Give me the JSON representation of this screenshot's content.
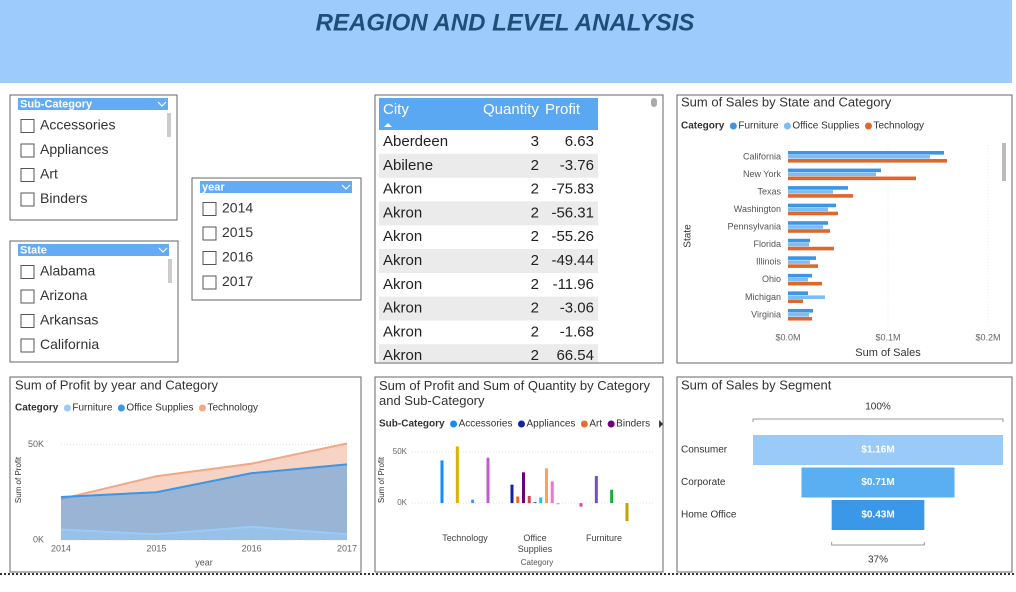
{
  "header": {
    "title": "REAGION AND LEVEL ANALYSIS"
  },
  "slicers": [
    {
      "title": "Sub-Category",
      "items": [
        "Accessories",
        "Appliances",
        "Art",
        "Binders"
      ]
    },
    {
      "title": "State",
      "items": [
        "Alabama",
        "Arizona",
        "Arkansas",
        "California"
      ]
    },
    {
      "title": "year",
      "items": [
        "2014",
        "2015",
        "2016",
        "2017"
      ]
    }
  ],
  "table": {
    "columns": [
      "City",
      "Quantity",
      "Profit"
    ],
    "rows": [
      [
        "Aberdeen",
        3,
        6.63
      ],
      [
        "Abilene",
        2,
        -3.76
      ],
      [
        "Akron",
        2,
        -75.83
      ],
      [
        "Akron",
        2,
        -56.31
      ],
      [
        "Akron",
        2,
        -55.26
      ],
      [
        "Akron",
        2,
        -49.44
      ],
      [
        "Akron",
        2,
        -11.96
      ],
      [
        "Akron",
        2,
        -3.06
      ],
      [
        "Akron",
        2,
        -1.68
      ],
      [
        "Akron",
        2,
        66.54
      ]
    ]
  },
  "chart_data": [
    {
      "type": "hbar",
      "title": "Sum of Sales by State and Category",
      "legend_title": "Category",
      "categories": [
        "California",
        "New York",
        "Texas",
        "Washington",
        "Pennsylvania",
        "Florida",
        "Illinois",
        "Ohio",
        "Michigan",
        "Virginia"
      ],
      "series": [
        {
          "name": "Furniture",
          "color": "#3C96E6",
          "values": [
            156000,
            93000,
            60000,
            48000,
            40000,
            22000,
            28000,
            24000,
            20000,
            25000
          ]
        },
        {
          "name": "Office Supplies",
          "color": "#7CBDF6",
          "values": [
            142000,
            88000,
            45000,
            40000,
            35000,
            21000,
            22000,
            20000,
            37000,
            21000
          ]
        },
        {
          "name": "Technology",
          "color": "#E0662A",
          "values": [
            159000,
            128000,
            65000,
            50000,
            42000,
            46000,
            30000,
            34000,
            15000,
            24000
          ]
        }
      ],
      "xlim": [
        0,
        210000
      ],
      "xticks": [
        {
          "value": 0,
          "label": "$0.0M"
        },
        {
          "value": 100000,
          "label": "$0.1M"
        },
        {
          "value": 200000,
          "label": "$0.2M"
        }
      ],
      "x_label": "Sum of Sales",
      "y_label": "State"
    },
    {
      "type": "area",
      "title": "Sum of Profit by year and Category",
      "legend_title": "Category",
      "x": [
        2014,
        2015,
        2016,
        2017
      ],
      "xlim": [
        2014,
        2017
      ],
      "xticks": [
        2014,
        2015,
        2016,
        2017
      ],
      "series": [
        {
          "name": "Furniture",
          "color": "#9ACBF8",
          "values": [
            5500,
            3000,
            6900,
            3000
          ]
        },
        {
          "name": "Office Supplies",
          "color": "#3C96E6",
          "values": [
            22600,
            25100,
            35100,
            39700
          ]
        },
        {
          "name": "Technology",
          "color": "#F0A887",
          "values": [
            21500,
            33500,
            40100,
            50700
          ]
        }
      ],
      "ylim": [
        0,
        52000
      ],
      "yticks": [
        {
          "value": 0,
          "label": "0K"
        },
        {
          "value": 50000,
          "label": "50K"
        }
      ],
      "x_label": "year",
      "y_label": "Sum of Profit",
      "grid": true
    },
    {
      "type": "groupbar",
      "title": "Sum of Profit and Sum of Quantity by Category and Sub-Category",
      "legend_title": "Sub-Category",
      "categories": [
        "Technology",
        "Office Supplies",
        "Furniture"
      ],
      "series": [
        {
          "name": "Accessories",
          "color": "#118DFF",
          "values": [
            41900,
            null,
            null
          ]
        },
        {
          "name": "Appliances",
          "color": "#12239E",
          "values": [
            null,
            18100,
            null
          ]
        },
        {
          "name": "Art",
          "color": "#E66C37",
          "values": [
            null,
            6500,
            null
          ]
        },
        {
          "name": "Binders",
          "color": "#6B007B",
          "values": [
            null,
            30200,
            null
          ]
        },
        {
          "color": "#E044A7",
          "values": [
            null,
            null,
            -3500
          ]
        },
        {
          "color": "#744EC2",
          "values": [
            null,
            null,
            26600
          ]
        },
        {
          "color": "#D9B300",
          "values": [
            55600,
            null,
            null
          ]
        },
        {
          "color": "#D64550",
          "values": [
            null,
            7000,
            null
          ]
        },
        {
          "color": "#197278",
          "values": [
            null,
            1000,
            null
          ]
        },
        {
          "color": "#1AAB40",
          "values": [
            null,
            null,
            13100
          ]
        },
        {
          "color": "#15C6F4",
          "values": [
            null,
            5500,
            null
          ]
        },
        {
          "color": "#4092FF",
          "values": [
            3400,
            null,
            null
          ]
        },
        {
          "color": "#FFA058",
          "values": [
            null,
            34100,
            null
          ]
        },
        {
          "color": "#BE5DC9",
          "values": [
            44500,
            null,
            null
          ]
        },
        {
          "color": "#F472D0",
          "values": [
            null,
            21300,
            null
          ]
        },
        {
          "color": "#B5A1FF",
          "values": [
            null,
            -1200,
            null
          ]
        },
        {
          "color": "#C4A200",
          "values": [
            null,
            null,
            -17700
          ]
        }
      ],
      "ylim": [
        -21000,
        57000
      ],
      "yticks": [
        {
          "value": 0,
          "label": "0K"
        },
        {
          "value": 50000,
          "label": "50K"
        }
      ],
      "x_label": "Category",
      "y_label": "Sum of Profit"
    },
    {
      "type": "funnel",
      "title": "Sum of Sales by Segment",
      "categories": [
        "Consumer",
        "Corporate",
        "Home Office"
      ],
      "values": [
        1160000,
        710000,
        430000
      ],
      "value_labels": [
        "$1.16M",
        "$0.71M",
        "$0.43M"
      ],
      "colors": [
        "#9ACBF8",
        "#5AAEF2",
        "#3B98E8"
      ],
      "top_label": "100%",
      "bottom_label": "37%"
    }
  ]
}
